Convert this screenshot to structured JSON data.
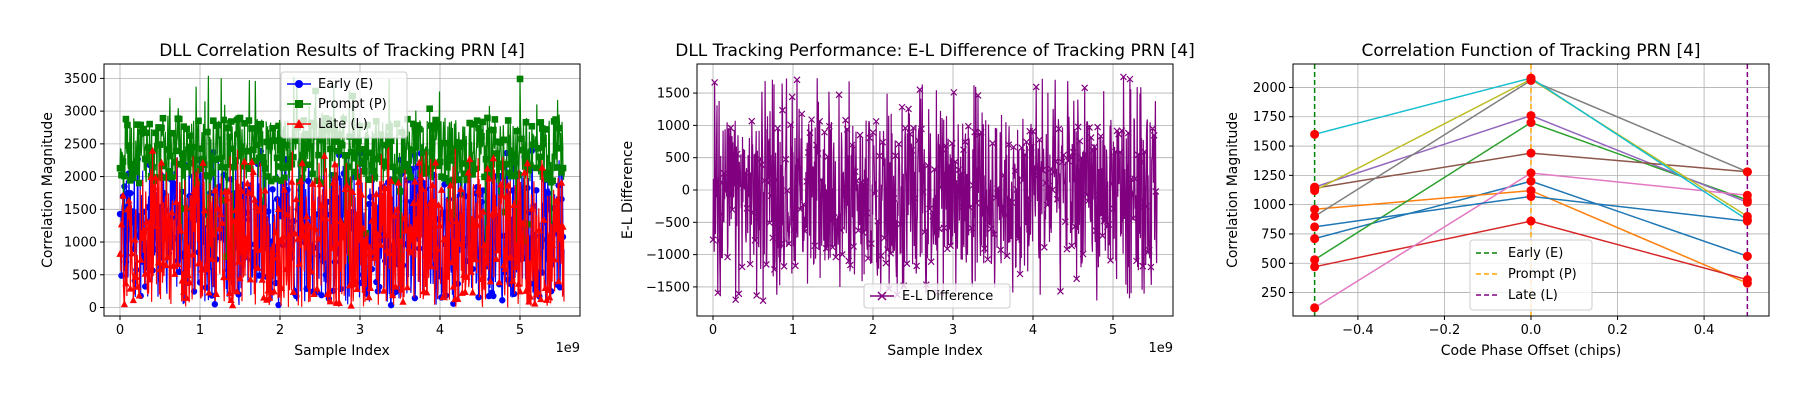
{
  "chart_data": [
    {
      "type": "line",
      "title": "DLL Correlation Results of Tracking PRN [4]",
      "xlabel": "Sample Index",
      "ylabel": "Correlation Magnitude",
      "x_offset_label": "1e9",
      "xlim": [
        -0.2,
        5.75
      ],
      "ylim": [
        -130,
        3720
      ],
      "xticks": [
        0,
        1,
        2,
        3,
        4,
        5
      ],
      "yticks": [
        0,
        500,
        1000,
        1500,
        2000,
        2500,
        3000,
        3500
      ],
      "grid": true,
      "legend_position": "upper center",
      "x_range": [
        0,
        5.55
      ],
      "series": [
        {
          "name": "Early (E)",
          "color": "#0000ff",
          "marker": "circle",
          "typical": [
            150,
            2100
          ],
          "outliers_max": 2400,
          "min": 20
        },
        {
          "name": "Prompt (P)",
          "color": "#008000",
          "marker": "square",
          "typical": [
            1900,
            2900
          ],
          "outliers_max": 3550,
          "min": 600
        },
        {
          "name": "Late (L)",
          "color": "#ff0000",
          "marker": "triangle",
          "typical": [
            80,
            2000
          ],
          "outliers_max": 2450,
          "min": 0
        }
      ]
    },
    {
      "type": "line",
      "title": "DLL Tracking Performance: E-L Difference of Tracking PRN [4]",
      "xlabel": "Sample Index",
      "ylabel": "E-L Difference",
      "x_offset_label": "1e9",
      "xlim": [
        -0.2,
        5.75
      ],
      "ylim": [
        -1950,
        1950
      ],
      "xticks": [
        0,
        1,
        2,
        3,
        4,
        5
      ],
      "yticks": [
        -1500,
        -1000,
        -500,
        0,
        500,
        1000,
        1500
      ],
      "grid": true,
      "legend_position": "lower center",
      "x_range": [
        0,
        5.55
      ],
      "series": [
        {
          "name": "E-L Difference",
          "color": "#800080",
          "marker": "x",
          "typical": [
            -1200,
            1100
          ],
          "extreme": [
            -1750,
            1750
          ]
        }
      ]
    },
    {
      "type": "line",
      "title": "Correlation Function of Tracking PRN [4]",
      "xlabel": "Code Phase Offset (chips)",
      "ylabel": "Correlation Magnitude",
      "xlim": [
        -0.55,
        0.55
      ],
      "ylim": [
        50,
        2200
      ],
      "xticks": [
        -0.4,
        -0.2,
        0.0,
        0.2,
        0.4
      ],
      "yticks": [
        250,
        500,
        750,
        1000,
        1250,
        1500,
        1750,
        2000
      ],
      "grid": true,
      "legend_position": "lower center",
      "x": [
        -0.5,
        0.0,
        0.5
      ],
      "curves": [
        {
          "color": "#1f77b4",
          "values": [
            710,
            1200,
            560
          ]
        },
        {
          "color": "#ff7f0e",
          "values": [
            960,
            1120,
            330
          ]
        },
        {
          "color": "#2ca02c",
          "values": [
            530,
            1700,
            1040
          ]
        },
        {
          "color": "#d62728",
          "values": [
            470,
            860,
            360
          ]
        },
        {
          "color": "#9467bd",
          "values": [
            1150,
            1760,
            1020
          ]
        },
        {
          "color": "#8c564b",
          "values": [
            1140,
            1440,
            1280
          ]
        },
        {
          "color": "#e377c2",
          "values": [
            120,
            1270,
            1080
          ]
        },
        {
          "color": "#7f7f7f",
          "values": [
            900,
            2060,
            1280
          ]
        },
        {
          "color": "#bcbd22",
          "values": [
            1120,
            2070,
            900
          ]
        },
        {
          "color": "#17becf",
          "values": [
            1600,
            2080,
            870
          ]
        },
        {
          "color": "#1f77b4",
          "values": [
            810,
            1070,
            860
          ]
        }
      ],
      "vlines": [
        {
          "name": "Early (E)",
          "x": -0.5,
          "color": "#008000"
        },
        {
          "name": "Prompt (P)",
          "x": 0.0,
          "color": "#ffa500"
        },
        {
          "name": "Late (L)",
          "x": 0.5,
          "color": "#800080"
        }
      ],
      "point_color": "#ff0000"
    }
  ]
}
